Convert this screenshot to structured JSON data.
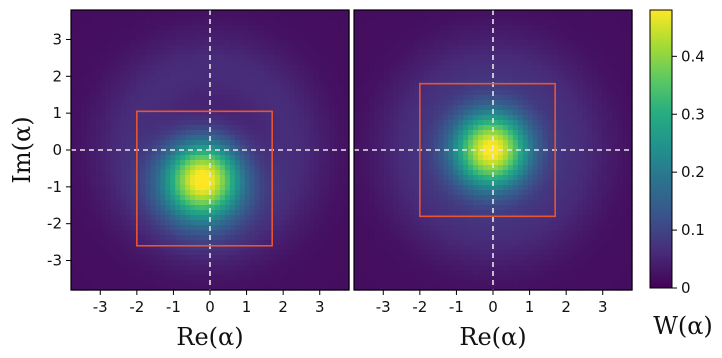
{
  "chart_data": [
    {
      "type": "heatmap",
      "xlabel": "Re(α)",
      "ylabel": "Im(α)",
      "xlim": [
        -3.8,
        3.8
      ],
      "ylim": [
        -3.8,
        3.8
      ],
      "xticks": [
        "-3",
        "-2",
        "-1",
        "0",
        "1",
        "2",
        "3"
      ],
      "yticks": [
        "3",
        "2",
        "1",
        "0",
        "-1",
        "-2",
        "-3"
      ],
      "peak_center": {
        "re": -0.2,
        "im": -0.8
      },
      "peak_value": 0.47,
      "peak_width": 0.75,
      "crosshair": {
        "re": 0,
        "im": 0
      },
      "box": {
        "re_min": -2.0,
        "re_max": 1.7,
        "im_min": -2.6,
        "im_max": 1.05
      }
    },
    {
      "type": "heatmap",
      "xlabel": "Re(α)",
      "xlim": [
        -3.8,
        3.8
      ],
      "ylim": [
        -3.8,
        3.8
      ],
      "xticks": [
        "-3",
        "-2",
        "-1",
        "0",
        "1",
        "2",
        "3"
      ],
      "peak_center": {
        "re": -0.05,
        "im": 0.0
      },
      "peak_value": 0.47,
      "peak_width": 0.75,
      "crosshair": {
        "re": 0,
        "im": 0
      },
      "box": {
        "re_min": -2.0,
        "re_max": 1.7,
        "im_min": -1.8,
        "im_max": 1.8
      }
    }
  ],
  "colorbar": {
    "label": "W(α)",
    "range": [
      0,
      0.48
    ],
    "ticks": [
      "0",
      "0.1",
      "0.2",
      "0.3",
      "0.4"
    ],
    "colormap": "viridis"
  },
  "colors": {
    "box": "#e8552f",
    "crosshair": "#e6e6e6"
  }
}
